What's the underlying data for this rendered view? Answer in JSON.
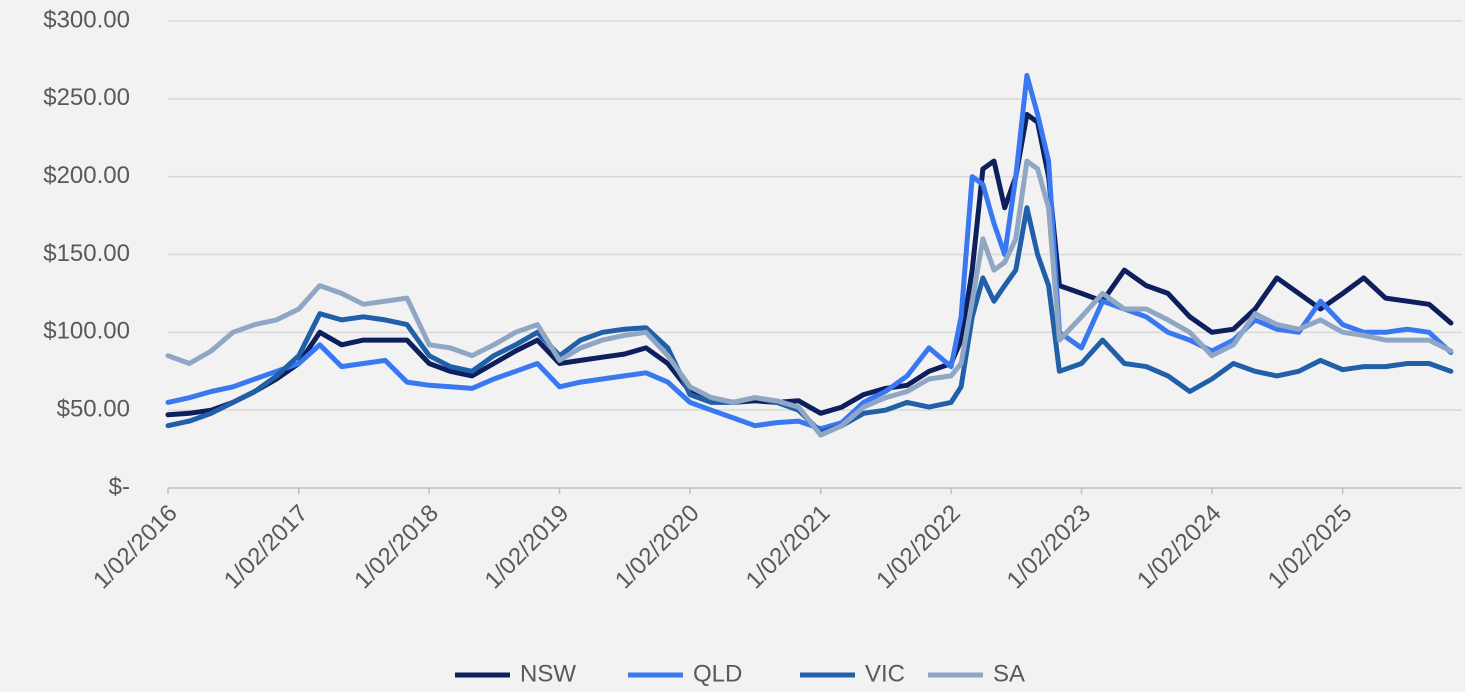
{
  "chart_data": {
    "type": "line",
    "x": [
      "1/02/2016",
      "1/04/2016",
      "1/06/2016",
      "1/08/2016",
      "1/10/2016",
      "1/12/2016",
      "1/02/2017",
      "1/04/2017",
      "1/06/2017",
      "1/08/2017",
      "1/10/2017",
      "1/12/2017",
      "1/02/2018",
      "1/04/2018",
      "1/06/2018",
      "1/08/2018",
      "1/10/2018",
      "1/12/2018",
      "1/02/2019",
      "1/04/2019",
      "1/06/2019",
      "1/08/2019",
      "1/10/2019",
      "1/12/2019",
      "1/02/2020",
      "1/04/2020",
      "1/06/2020",
      "1/08/2020",
      "1/10/2020",
      "1/12/2020",
      "1/02/2021",
      "1/04/2021",
      "1/06/2021",
      "1/08/2021",
      "1/10/2021",
      "1/12/2021",
      "1/02/2022",
      "1/03/2022",
      "1/04/2022",
      "1/05/2022",
      "1/06/2022",
      "1/07/2022",
      "1/08/2022",
      "1/09/2022",
      "1/10/2022",
      "1/11/2022",
      "1/12/2022",
      "1/02/2023",
      "1/04/2023",
      "1/06/2023",
      "1/08/2023",
      "1/10/2023",
      "1/12/2023",
      "1/02/2024",
      "1/04/2024",
      "1/06/2024",
      "1/08/2024",
      "1/10/2024",
      "1/12/2024",
      "1/02/2025",
      "1/04/2025",
      "1/06/2025",
      "1/08/2025",
      "1/10/2025",
      "1/12/2025"
    ],
    "series": [
      {
        "name": "NSW",
        "color": "#0d1f5c",
        "values": [
          47,
          48,
          50,
          55,
          62,
          70,
          80,
          100,
          92,
          95,
          95,
          95,
          80,
          75,
          72,
          80,
          88,
          95,
          80,
          82,
          84,
          86,
          90,
          80,
          62,
          58,
          55,
          56,
          55,
          56,
          48,
          52,
          60,
          64,
          66,
          75,
          80,
          95,
          140,
          205,
          210,
          180,
          200,
          240,
          235,
          200,
          130,
          125,
          120,
          140,
          130,
          125,
          110,
          100,
          102,
          115,
          135,
          125,
          115,
          125,
          135,
          122,
          120,
          118,
          106
        ]
      },
      {
        "name": "QLD",
        "color": "#3a78f2",
        "values": [
          55,
          58,
          62,
          65,
          70,
          75,
          80,
          92,
          78,
          80,
          82,
          68,
          66,
          65,
          64,
          70,
          75,
          80,
          65,
          68,
          70,
          72,
          74,
          68,
          55,
          50,
          45,
          40,
          42,
          43,
          38,
          42,
          55,
          62,
          72,
          90,
          78,
          110,
          200,
          195,
          170,
          150,
          200,
          265,
          240,
          210,
          100,
          90,
          120,
          115,
          110,
          100,
          95,
          88,
          95,
          108,
          102,
          100,
          120,
          105,
          100,
          100,
          102,
          100,
          87
        ]
      },
      {
        "name": "VIC",
        "color": "#2160a8",
        "values": [
          40,
          43,
          48,
          55,
          62,
          72,
          85,
          112,
          108,
          110,
          108,
          105,
          85,
          78,
          75,
          85,
          92,
          100,
          85,
          95,
          100,
          102,
          103,
          90,
          60,
          55,
          55,
          58,
          55,
          50,
          36,
          40,
          48,
          50,
          55,
          52,
          55,
          65,
          110,
          135,
          120,
          130,
          140,
          180,
          150,
          130,
          75,
          80,
          95,
          80,
          78,
          72,
          62,
          70,
          80,
          75,
          72,
          75,
          82,
          76,
          78,
          78,
          80,
          80,
          75
        ]
      },
      {
        "name": "SA",
        "color": "#8fa6c4",
        "values": [
          85,
          80,
          88,
          100,
          105,
          108,
          115,
          130,
          125,
          118,
          120,
          122,
          92,
          90,
          85,
          92,
          100,
          105,
          82,
          90,
          95,
          98,
          100,
          85,
          65,
          58,
          55,
          58,
          56,
          52,
          34,
          40,
          52,
          58,
          62,
          70,
          72,
          80,
          120,
          160,
          140,
          145,
          160,
          210,
          205,
          180,
          95,
          110,
          125,
          115,
          115,
          108,
          100,
          85,
          92,
          112,
          105,
          102,
          108,
          100,
          98,
          95,
          95,
          95,
          88
        ]
      }
    ],
    "xlim": [
      "1/02/2016",
      "1/01/2026"
    ],
    "xticks": [
      "1/02/2016",
      "1/02/2017",
      "1/02/2018",
      "1/02/2019",
      "1/02/2020",
      "1/02/2021",
      "1/02/2022",
      "1/02/2023",
      "1/02/2024",
      "1/02/2025"
    ],
    "ylim": [
      0,
      300
    ],
    "yticks": [
      {
        "value": 0,
        "label": "$-"
      },
      {
        "value": 50,
        "label": "$50.00"
      },
      {
        "value": 100,
        "label": "$100.00"
      },
      {
        "value": 150,
        "label": "$150.00"
      },
      {
        "value": 200,
        "label": "$200.00"
      },
      {
        "value": 250,
        "label": "$250.00"
      },
      {
        "value": 300,
        "label": "$300.00"
      }
    ],
    "grid": true,
    "legend": "bottom"
  }
}
